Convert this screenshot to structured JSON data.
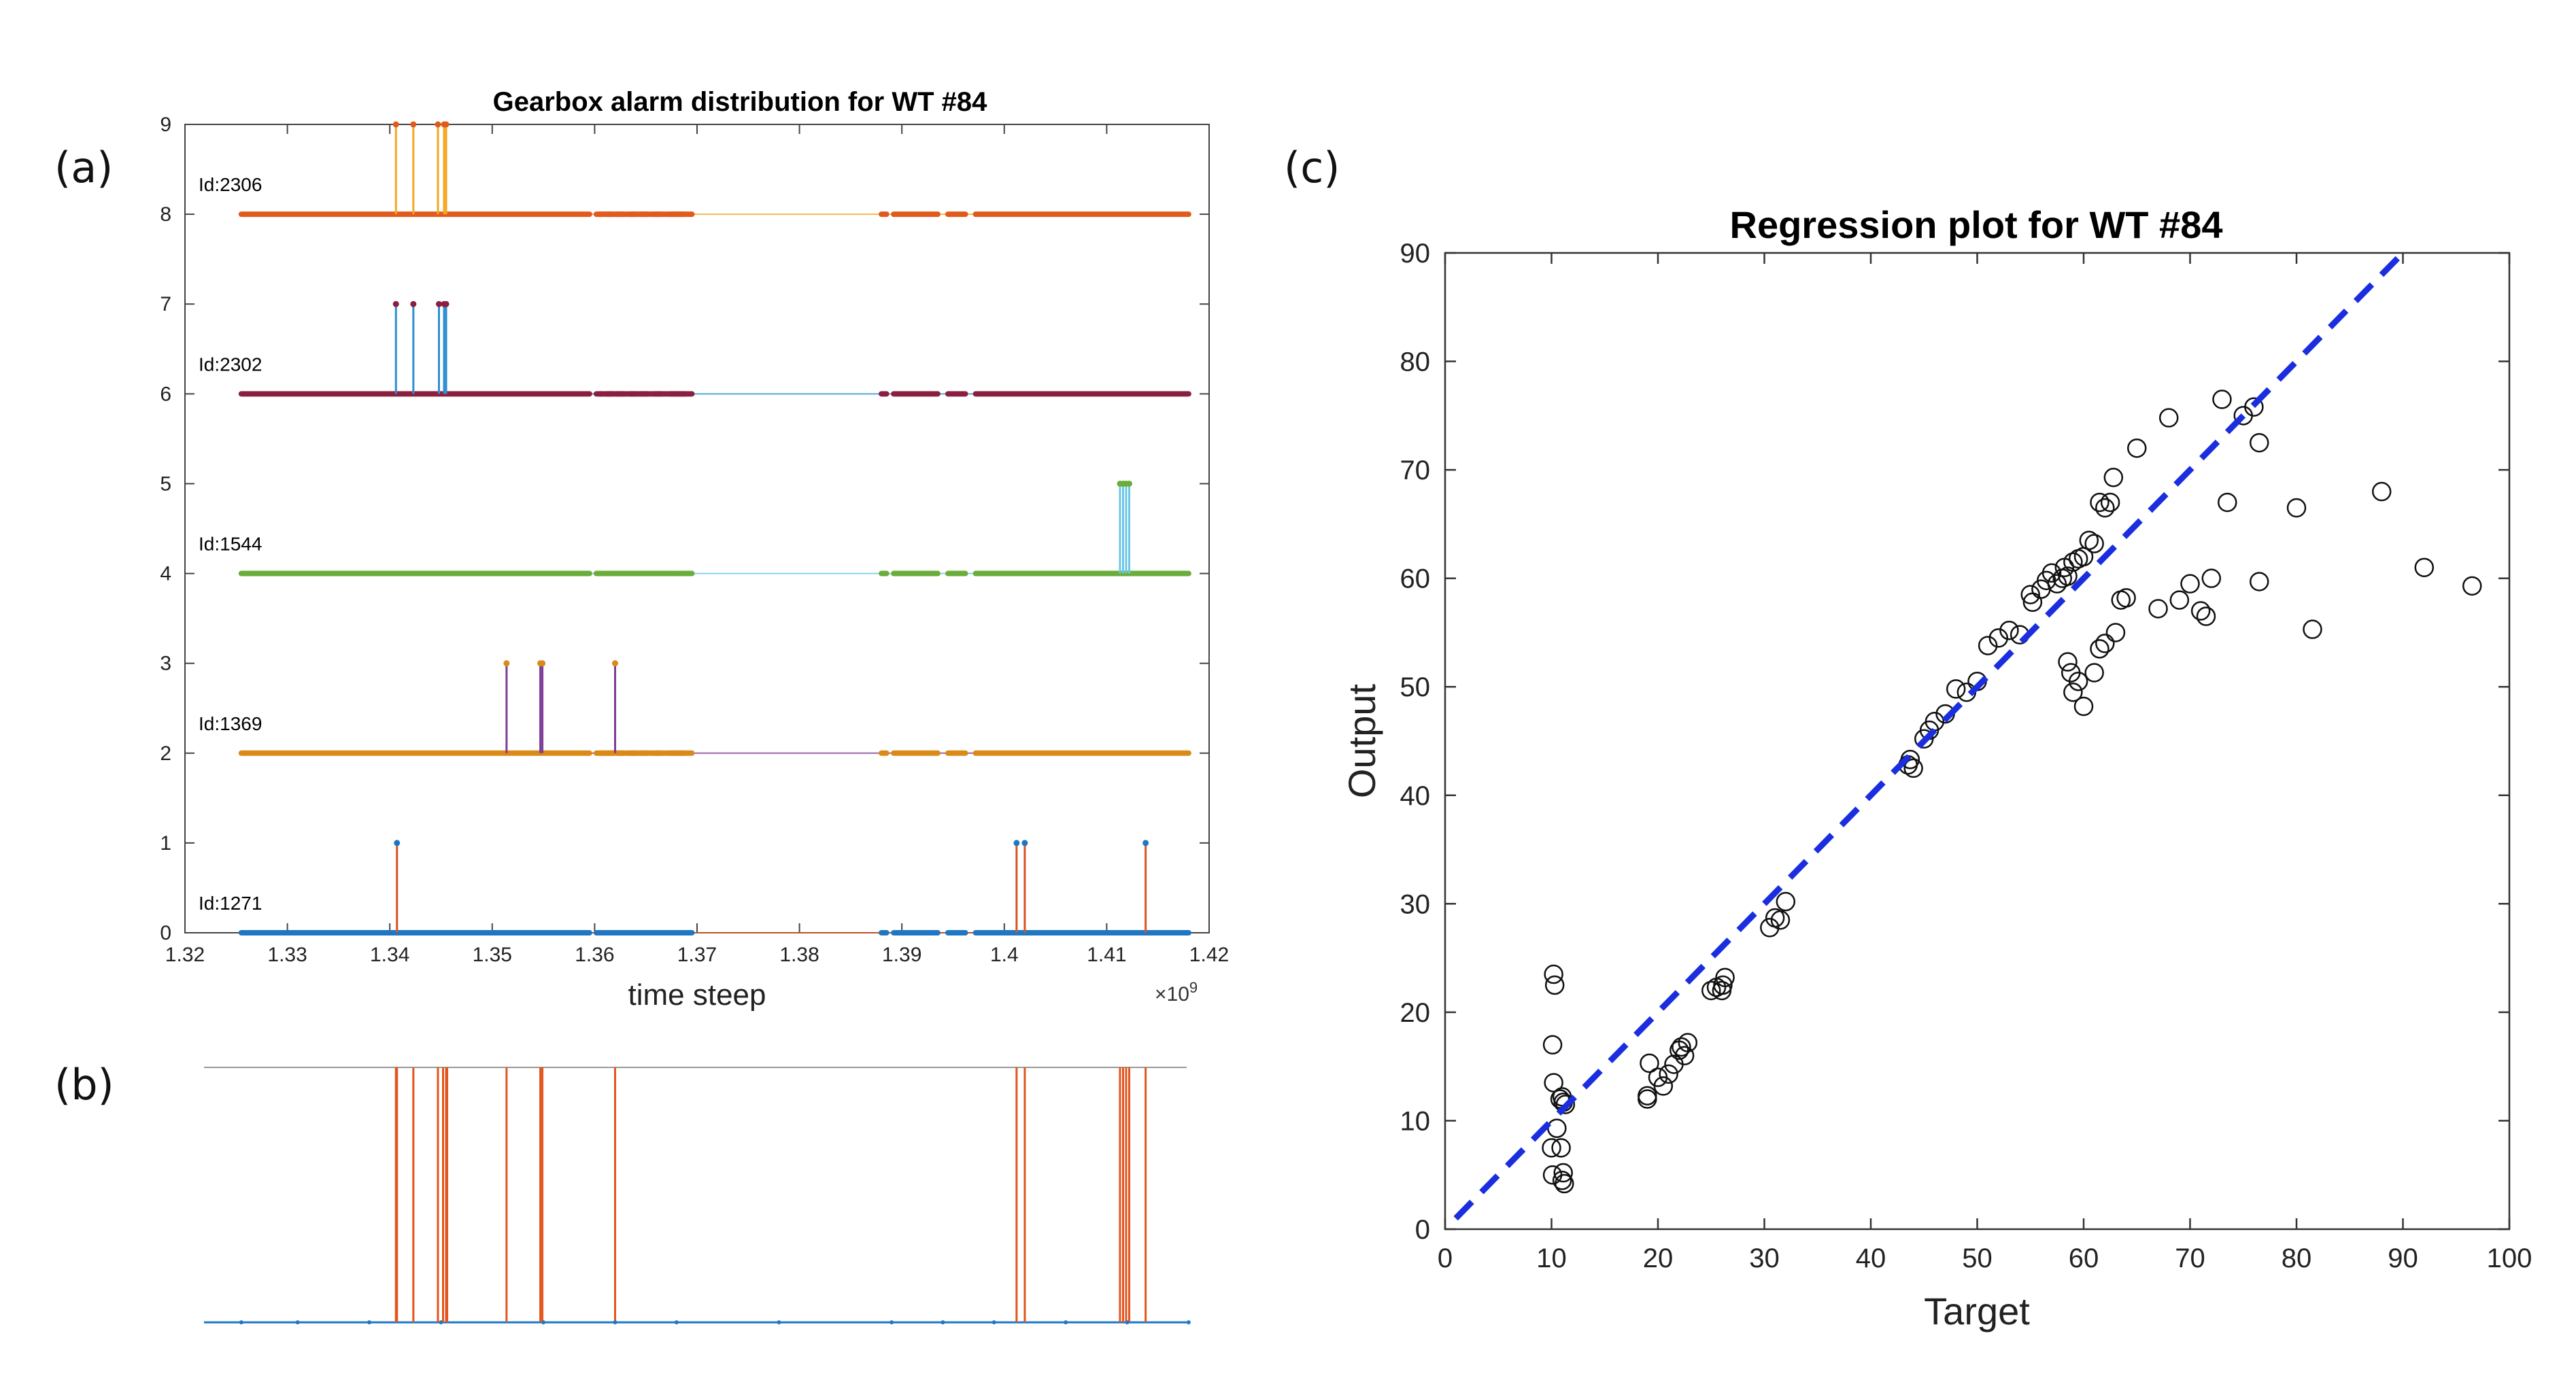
{
  "panel_labels": [
    "(a)",
    "(b)",
    "(c)"
  ],
  "chart_data": [
    {
      "type": "line",
      "panel": "a",
      "title": "Gearbox alarm distribution for WT #84",
      "xlabel": "time steep",
      "x_exponent": "×10",
      "x_exponent_power": "9",
      "ylabel": "",
      "xlim": [
        1.32,
        1.42
      ],
      "ylim": [
        0,
        9
      ],
      "xticks": [
        "1.32",
        "1.33",
        "1.34",
        "1.35",
        "1.36",
        "1.37",
        "1.38",
        "1.39",
        "1.4",
        "1.41",
        "1.42"
      ],
      "yticks": [
        "0",
        "1",
        "2",
        "3",
        "4",
        "5",
        "6",
        "7",
        "8",
        "9"
      ],
      "data_range": [
        1.3255,
        1.418
      ],
      "gap_dots": [
        1.3605,
        1.3615,
        1.3625,
        1.3638,
        1.3648,
        1.3662,
        1.3677,
        1.3685
      ],
      "gaps": [
        [
          1.3595,
          1.3605
        ],
        [
          1.3695,
          1.388
        ],
        [
          1.3885,
          1.3892
        ],
        [
          1.3935,
          1.3945
        ],
        [
          1.3962,
          1.3972
        ]
      ],
      "series": [
        {
          "name": "Id:2306",
          "baseline": 8,
          "level": 9,
          "color": "#e05a1c",
          "stem_color": "#f5a623",
          "alarms": [
            1.3406,
            1.3423,
            1.3447,
            1.3453,
            1.3455
          ]
        },
        {
          "name": "Id:2302",
          "baseline": 6,
          "level": 7,
          "color": "#8b1f3f",
          "stem_color": "#2f8fd0",
          "alarms": [
            1.3406,
            1.3423,
            1.3448,
            1.3453,
            1.3455
          ]
        },
        {
          "name": "Id:1544",
          "baseline": 4,
          "level": 5,
          "color": "#6aad3a",
          "stem_color": "#6ec6e6",
          "alarms": [
            1.4113,
            1.4116,
            1.4119,
            1.4122
          ]
        },
        {
          "name": "Id:1369",
          "baseline": 2,
          "level": 3,
          "color": "#d98a17",
          "stem_color": "#7e3b96",
          "alarms": [
            1.3514,
            1.3547,
            1.3549,
            1.362
          ]
        },
        {
          "name": "Id:1271",
          "baseline": 0,
          "level": 1,
          "color": "#1f77c4",
          "stem_color": "#d9541e",
          "alarms": [
            1.3407,
            1.4012,
            1.402,
            1.4138
          ]
        }
      ]
    },
    {
      "type": "line",
      "panel": "b",
      "title": "",
      "xlim": [
        1.32,
        1.42
      ],
      "baseline_color": "#1f77c4",
      "stem_color": "#e2551d",
      "top_color": "#999999",
      "data_range": [
        1.3255,
        1.418
      ],
      "alarms": [
        1.3406,
        1.3407,
        1.3423,
        1.3447,
        1.3452,
        1.3455,
        1.3456,
        1.3514,
        1.3547,
        1.3549,
        1.362,
        1.4012,
        1.402,
        1.4113,
        1.4116,
        1.4119,
        1.4122,
        1.4138
      ]
    },
    {
      "type": "scatter",
      "panel": "c",
      "title": "Regression plot for WT #84",
      "xlabel": "Target",
      "ylabel": "Output",
      "xlim": [
        0,
        100
      ],
      "ylim": [
        0,
        90
      ],
      "xticks": [
        "0",
        "10",
        "20",
        "30",
        "40",
        "50",
        "60",
        "70",
        "80",
        "90",
        "100"
      ],
      "yticks": [
        "0",
        "10",
        "20",
        "30",
        "40",
        "50",
        "60",
        "70",
        "80",
        "90"
      ],
      "fit_line": {
        "x": [
          1,
          90
        ],
        "y": [
          1,
          90
        ],
        "style": "dashed",
        "color": "#1a2ee0"
      },
      "points": {
        "x": [
          10.2,
          10.3,
          10.1,
          10.2,
          10.5,
          10.0,
          10.1,
          11.0,
          11.2,
          11.1,
          10.9,
          11.3,
          10.8,
          11.1,
          11.0,
          19,
          19,
          19.2,
          20,
          20.5,
          21,
          21.5,
          22,
          22.5,
          22.8,
          22.2,
          25,
          25.5,
          26,
          26.3,
          26.1,
          30.5,
          31,
          31.5,
          32,
          43.5,
          43.7,
          44,
          45,
          45.5,
          46,
          47,
          48,
          49,
          50,
          51,
          52,
          53,
          54,
          55,
          55.2,
          56,
          56.5,
          57,
          57.5,
          58,
          58.2,
          58.5,
          59,
          59.5,
          60,
          60.5,
          61,
          61.5,
          62,
          62.5,
          62.8,
          58.5,
          58.8,
          59,
          59.5,
          60,
          61,
          61.5,
          62,
          63,
          63.5,
          64,
          65,
          67,
          68,
          69,
          70,
          71,
          71.5,
          72,
          73,
          73.5,
          75,
          76,
          76.5,
          80,
          81.5,
          88,
          92,
          96.5,
          76.5
        ],
        "y": [
          23.5,
          22.5,
          17,
          13.5,
          9.3,
          7.5,
          5,
          4.5,
          4.2,
          5.2,
          7.5,
          11.5,
          12,
          11.7,
          12.2,
          12,
          12.3,
          15.3,
          14,
          13.2,
          14.3,
          15.2,
          16.5,
          16,
          17.2,
          16.8,
          22,
          22.3,
          22,
          23.2,
          22.5,
          27.8,
          28.7,
          28.5,
          30.2,
          42.8,
          43.3,
          42.5,
          45.2,
          46,
          46.8,
          47.5,
          49.8,
          49.5,
          50.5,
          53.8,
          54.5,
          55.2,
          54.8,
          58.5,
          57.8,
          59,
          59.8,
          60.5,
          59.5,
          60,
          61,
          60.2,
          61.5,
          61.8,
          62,
          63.5,
          63.2,
          67,
          66.5,
          67,
          69.3,
          52.3,
          51.3,
          49.5,
          50.5,
          48.2,
          51.3,
          53.5,
          54,
          55,
          58,
          58.2,
          72,
          57.2,
          74.8,
          58,
          59.5,
          57,
          56.5,
          60,
          76.5,
          67,
          75,
          75.8,
          72.5,
          66.5,
          55.3,
          68,
          61,
          59.3,
          59.7
        ]
      }
    }
  ]
}
